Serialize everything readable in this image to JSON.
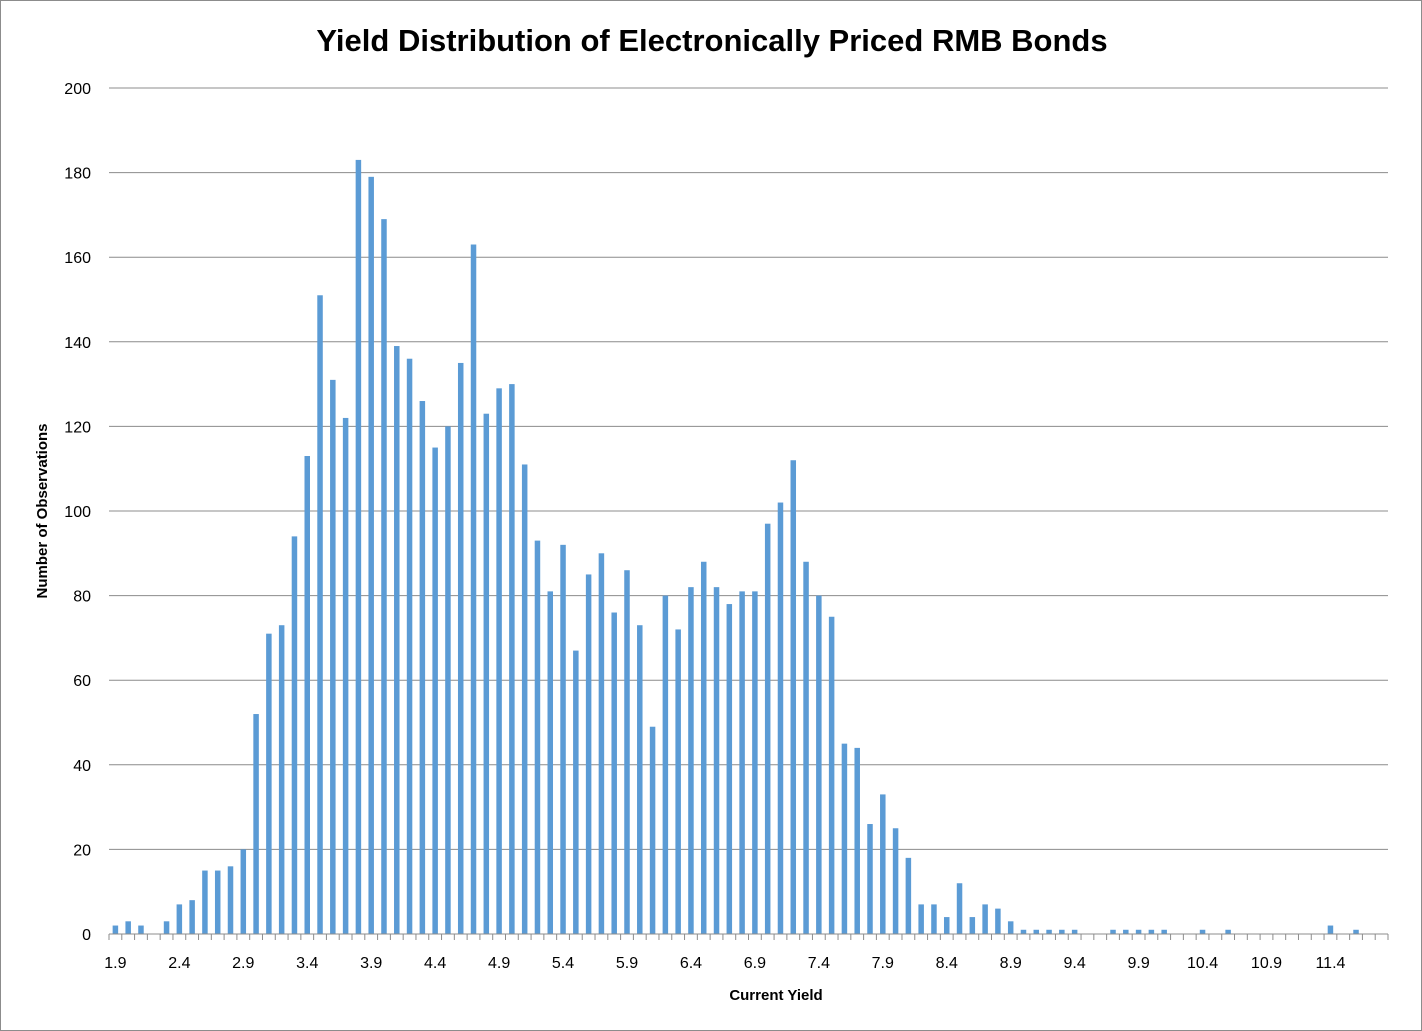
{
  "chart_data": {
    "type": "bar",
    "title": "Yield Distribution of Electronically Priced RMB Bonds",
    "xlabel": "Current Yield",
    "ylabel": "Number of Observations",
    "ylim": [
      0,
      200
    ],
    "yticks": [
      0,
      20,
      40,
      60,
      80,
      100,
      120,
      140,
      160,
      180,
      200
    ],
    "grid": true,
    "legend": "none",
    "bar_color": "#5B9BD5",
    "categories": [
      "1.9",
      "2.0",
      "2.1",
      "2.2",
      "2.3",
      "2.4",
      "2.5",
      "2.6",
      "2.7",
      "2.8",
      "2.9",
      "3.0",
      "3.1",
      "3.2",
      "3.3",
      "3.4",
      "3.5",
      "3.6",
      "3.7",
      "3.8",
      "3.9",
      "4.0",
      "4.1",
      "4.2",
      "4.3",
      "4.4",
      "4.5",
      "4.6",
      "4.7",
      "4.8",
      "4.9",
      "5.0",
      "5.1",
      "5.2",
      "5.3",
      "5.4",
      "5.5",
      "5.6",
      "5.7",
      "5.8",
      "5.9",
      "6.0",
      "6.1",
      "6.2",
      "6.3",
      "6.4",
      "6.5",
      "6.6",
      "6.7",
      "6.8",
      "6.9",
      "7.0",
      "7.1",
      "7.2",
      "7.3",
      "7.4",
      "7.5",
      "7.6",
      "7.7",
      "7.8",
      "7.9",
      "8.0",
      "8.1",
      "8.2",
      "8.3",
      "8.4",
      "8.5",
      "8.6",
      "8.7",
      "8.8",
      "8.9",
      "9.0",
      "9.1",
      "9.2",
      "9.3",
      "9.4",
      "9.5",
      "9.6",
      "9.7",
      "9.8",
      "9.9",
      "10.0",
      "10.1",
      "10.2",
      "10.3",
      "10.4",
      "10.5",
      "10.6",
      "10.7",
      "10.8",
      "10.9",
      "11.0",
      "11.1",
      "11.2",
      "11.3",
      "11.4",
      "11.5",
      "11.6",
      "11.7",
      "11.8"
    ],
    "xtick_labels": [
      "1.9",
      "2.4",
      "2.9",
      "3.4",
      "3.9",
      "4.4",
      "4.9",
      "5.4",
      "5.9",
      "6.4",
      "6.9",
      "7.4",
      "7.9",
      "8.4",
      "8.9",
      "9.4",
      "9.9",
      "10.4",
      "10.9",
      "11.4"
    ],
    "values": [
      2,
      3,
      2,
      0,
      3,
      7,
      8,
      15,
      15,
      16,
      20,
      52,
      71,
      73,
      94,
      113,
      151,
      131,
      122,
      183,
      179,
      169,
      139,
      136,
      126,
      115,
      120,
      135,
      163,
      123,
      129,
      130,
      111,
      93,
      81,
      92,
      67,
      85,
      90,
      76,
      86,
      73,
      49,
      80,
      72,
      82,
      88,
      82,
      78,
      81,
      81,
      97,
      102,
      112,
      88,
      80,
      75,
      45,
      44,
      26,
      33,
      25,
      18,
      7,
      7,
      4,
      12,
      4,
      7,
      6,
      3,
      1,
      1,
      1,
      1,
      1,
      0,
      0,
      1,
      1,
      1,
      1,
      1,
      0,
      0,
      1,
      0,
      1,
      0,
      0,
      0,
      0,
      0,
      0,
      0,
      2,
      0,
      1,
      0,
      0
    ]
  }
}
